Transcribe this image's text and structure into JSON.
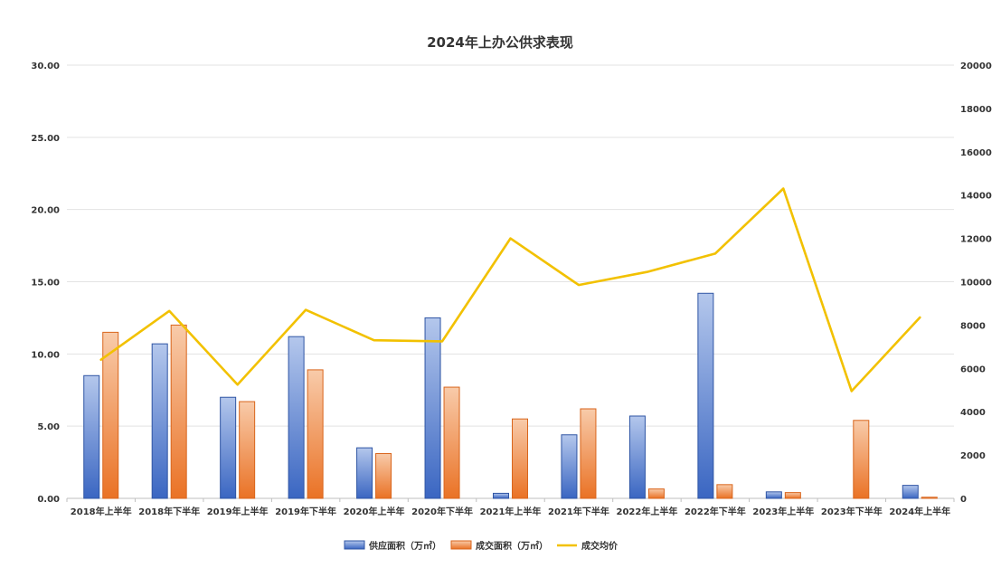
{
  "chart_data": {
    "type": "bar",
    "title": "2024年上办公供求表现",
    "categories": [
      "2018年上半年",
      "2018年下半年",
      "2019年上半年",
      "2019年下半年",
      "2020年上半年",
      "2020年下半年",
      "2021年上半年",
      "2021年下半年",
      "2022年上半年",
      "2022年下半年",
      "2023年上半年",
      "2023年下半年",
      "2024年上半年"
    ],
    "series": [
      {
        "name": "供应面积（万㎡）",
        "type": "bar",
        "axis": "left",
        "color": "#4472C4",
        "values": [
          8.5,
          10.7,
          7.0,
          11.2,
          3.5,
          12.5,
          0.35,
          4.4,
          5.7,
          14.2,
          0.45,
          0.0,
          0.9
        ]
      },
      {
        "name": "成交面积（万㎡）",
        "type": "bar",
        "axis": "left",
        "color": "#ED7D31",
        "values": [
          11.5,
          12.0,
          6.7,
          8.9,
          3.1,
          7.7,
          5.5,
          6.2,
          0.65,
          0.95,
          0.4,
          5.4,
          0.08
        ]
      },
      {
        "name": "成交均价",
        "type": "line",
        "axis": "right",
        "color": "#F2C100",
        "values": [
          6400,
          8650,
          5250,
          8700,
          7300,
          7250,
          12000,
          9850,
          10450,
          11300,
          14300,
          4950,
          8350
        ]
      }
    ],
    "y_left": {
      "min": 0,
      "max": 30,
      "ticks": [
        "0.00",
        "5.00",
        "10.00",
        "15.00",
        "20.00",
        "25.00",
        "30.00"
      ]
    },
    "y_right": {
      "min": 0,
      "max": 20000,
      "ticks": [
        "0",
        "2000",
        "4000",
        "6000",
        "8000",
        "10000",
        "12000",
        "14000",
        "16000",
        "18000",
        "20000"
      ]
    },
    "grid": true,
    "legend_position": "bottom"
  }
}
